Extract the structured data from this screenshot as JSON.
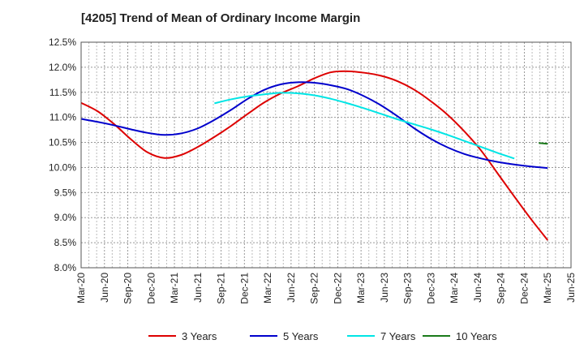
{
  "chart_data": {
    "type": "line",
    "title": "[4205]  Trend of Mean of Ordinary Income Margin",
    "xlabel": "",
    "ylabel": "",
    "x_tick_labels": [
      "Mar-20",
      "Jun-20",
      "Sep-20",
      "Dec-20",
      "Mar-21",
      "Jun-21",
      "Sep-21",
      "Dec-21",
      "Mar-22",
      "Jun-22",
      "Sep-22",
      "Dec-22",
      "Mar-23",
      "Jun-23",
      "Sep-23",
      "Dec-23",
      "Mar-24",
      "Jun-24",
      "Sep-24",
      "Dec-24",
      "Mar-25",
      "Jun-25"
    ],
    "y_tick_labels": [
      "8.0%",
      "8.5%",
      "9.0%",
      "9.5%",
      "10.0%",
      "10.5%",
      "11.0%",
      "11.5%",
      "12.0%",
      "12.5%"
    ],
    "y_ticks": [
      8.0,
      8.5,
      9.0,
      9.5,
      10.0,
      10.5,
      11.0,
      11.5,
      12.0,
      12.5
    ],
    "ylim": [
      8.0,
      12.5
    ],
    "grid": true,
    "legend_position": "bottom",
    "series": [
      {
        "name": "3 Years",
        "color": "#dd0000",
        "start_index": 0,
        "values": [
          11.29,
          11.12,
          10.86,
          10.56,
          10.3,
          10.19,
          10.25,
          10.41,
          10.61,
          10.83,
          11.07,
          11.3,
          11.48,
          11.62,
          11.78,
          11.9,
          11.92,
          11.89,
          11.83,
          11.72,
          11.55,
          11.32,
          11.05,
          10.72,
          10.34,
          9.88,
          9.42,
          8.97,
          8.55
        ]
      },
      {
        "name": "5 Years",
        "color": "#0000cc",
        "start_index": 0,
        "values": [
          10.97,
          10.91,
          10.84,
          10.76,
          10.69,
          10.65,
          10.68,
          10.78,
          10.95,
          11.15,
          11.37,
          11.55,
          11.66,
          11.7,
          11.69,
          11.64,
          11.56,
          11.42,
          11.24,
          11.02,
          10.78,
          10.57,
          10.4,
          10.27,
          10.18,
          10.11,
          10.06,
          10.02,
          9.99
        ]
      },
      {
        "name": "7 Years",
        "color": "#00e5e5",
        "start_index": 8,
        "values": [
          11.28,
          11.36,
          11.42,
          11.46,
          11.49,
          11.48,
          11.44,
          11.37,
          11.28,
          11.18,
          11.07,
          10.96,
          10.86,
          10.76,
          10.65,
          10.53,
          10.41,
          10.29,
          10.18
        ]
      },
      {
        "name": "10 Years",
        "color": "#1a7a1a",
        "start_index": 28,
        "values": [
          10.48
        ]
      }
    ]
  }
}
